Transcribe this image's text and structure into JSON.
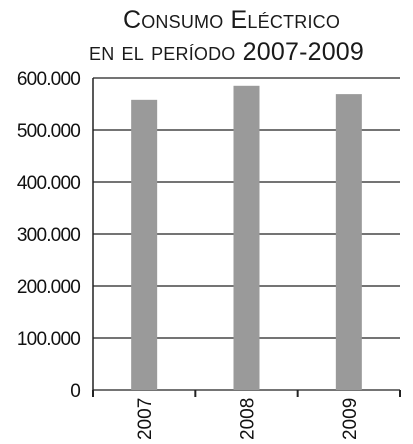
{
  "chart_data": {
    "type": "bar",
    "title_line1": "Consumo Eléctrico",
    "title_line2": "en el período 2007-2009",
    "categories": [
      "2007",
      "2008",
      "2009"
    ],
    "values": [
      558000,
      585000,
      569000
    ],
    "ylim": [
      0,
      600000
    ],
    "yticks": [
      0,
      100000,
      200000,
      300000,
      400000,
      500000,
      600000
    ],
    "ytick_labels": [
      "0",
      "100.000",
      "200.000",
      "300.000",
      "400.000",
      "500.000",
      "600.000"
    ],
    "grid": true,
    "legend": "none",
    "bar_color": "#9a9a9a"
  }
}
